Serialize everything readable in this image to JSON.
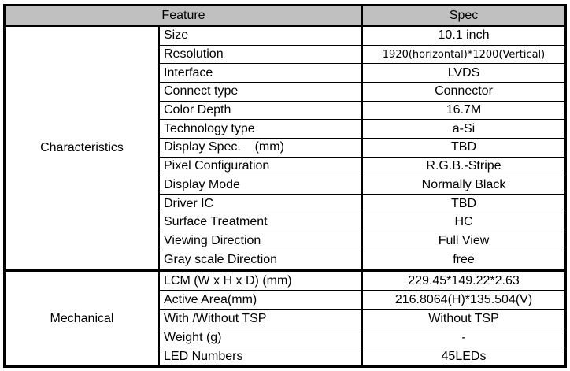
{
  "header": {
    "feature": "Feature",
    "spec": "Spec"
  },
  "sections": [
    {
      "name": "Characteristics",
      "rows": [
        {
          "feature": "Size",
          "spec": "10.1 inch"
        },
        {
          "feature": "Resolution",
          "spec": "1920(horizontal)*1200(Vertical)"
        },
        {
          "feature": "Interface",
          "spec": "LVDS"
        },
        {
          "feature": "Connect type",
          "spec": "Connector"
        },
        {
          "feature": "Color Depth",
          "spec": "16.7M"
        },
        {
          "feature": "Technology type",
          "spec": "a-Si"
        },
        {
          "feature": "Display Spec.    (mm)",
          "spec": "TBD"
        },
        {
          "feature": "Pixel Configuration",
          "spec": "R.G.B.-Stripe"
        },
        {
          "feature": "Display Mode",
          "spec": "Normally Black"
        },
        {
          "feature": "Driver IC",
          "spec": "TBD"
        },
        {
          "feature": "Surface Treatment",
          "spec": "HC"
        },
        {
          "feature": "Viewing Direction",
          "spec": "Full View"
        },
        {
          "feature": "Gray scale Direction",
          "spec": "free"
        }
      ]
    },
    {
      "name": "Mechanical",
      "rows": [
        {
          "feature": "LCM (W x H x D) (mm)",
          "spec": "229.45*149.22*2.63"
        },
        {
          "feature": "Active Area(mm)",
          "spec": "216.8064(H)*135.504(V)"
        },
        {
          "feature": "With /Without TSP",
          "spec": "Without TSP"
        },
        {
          "feature": "Weight (g)",
          "spec": "-"
        },
        {
          "feature": "LED Numbers",
          "spec": "45LEDs"
        }
      ]
    }
  ]
}
